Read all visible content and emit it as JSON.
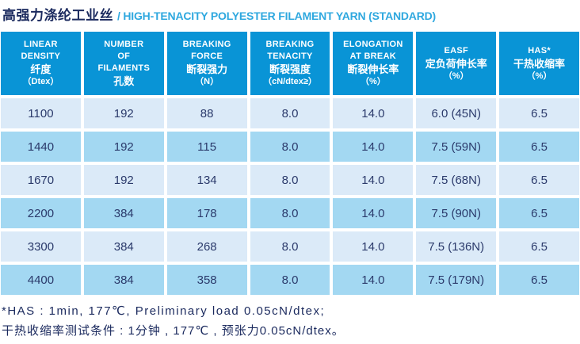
{
  "title": {
    "cn": "高强力涤纶工业丝",
    "en": "/ HIGH-TENACITY POLYESTER FILAMENT YARN (STANDARD)"
  },
  "colors": {
    "header_blue": "#0994d6",
    "row_light": "#dbeaf8",
    "row_medium": "#a3d8f2",
    "text_navy": "#2b3a6b",
    "title_navy": "#1b2a5e",
    "title_blue": "#2fa8df"
  },
  "table": {
    "columns": [
      {
        "en_lines": [
          "LINEAR",
          "DENSITY"
        ],
        "cn": "纤度",
        "unit": "（Dtex）"
      },
      {
        "en_lines": [
          "NUMBER",
          "OF",
          "FILAMENTS"
        ],
        "cn": "孔数",
        "unit": ""
      },
      {
        "en_lines": [
          "BREAKING",
          "FORCE"
        ],
        "cn": "断裂强力",
        "unit": "（N）"
      },
      {
        "en_lines": [
          "BREAKING",
          "TENACITY"
        ],
        "cn": "断裂强度",
        "unit": "（cN/dtex≥）"
      },
      {
        "en_lines": [
          "ELONGATION",
          "AT BREAK"
        ],
        "cn": "断裂伸长率",
        "unit": "（%）"
      },
      {
        "en_lines": [
          "EASF"
        ],
        "cn": "定负荷伸长率",
        "unit": "（%）"
      },
      {
        "en_lines": [
          "HAS*"
        ],
        "cn": "干热收缩率",
        "unit": "（%）"
      }
    ],
    "rows": [
      [
        "1100",
        "192",
        "88",
        "8.0",
        "14.0",
        "6.0 (45N)",
        "6.5"
      ],
      [
        "1440",
        "192",
        "115",
        "8.0",
        "14.0",
        "7.5 (59N)",
        "6.5"
      ],
      [
        "1670",
        "192",
        "134",
        "8.0",
        "14.0",
        "7.5 (68N)",
        "6.5"
      ],
      [
        "2200",
        "384",
        "178",
        "8.0",
        "14.0",
        "7.5 (90N)",
        "6.5"
      ],
      [
        "3300",
        "384",
        "268",
        "8.0",
        "14.0",
        "7.5 (136N)",
        "6.5"
      ],
      [
        "4400",
        "384",
        "358",
        "8.0",
        "14.0",
        "7.5 (179N)",
        "6.5"
      ]
    ]
  },
  "footnotes": {
    "line1": "*HAS : 1min, 177℃, Preliminary load 0.05cN/dtex;",
    "line2": "干热收缩率测试条件 : 1分钟 , 177℃ , 预张力0.05cN/dtex。"
  }
}
